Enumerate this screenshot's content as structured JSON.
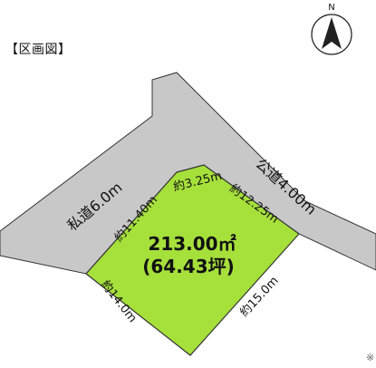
{
  "heading": "【区画図】",
  "compass": {
    "label": "N"
  },
  "roads": {
    "private_road_label": "私道6.0m",
    "public_road_label": "公道4.00m"
  },
  "lot": {
    "area_m2": "213.00㎡",
    "area_tsubo": "(64.43坪)",
    "fill_color": "#a6e03b",
    "outline_color": "#333333"
  },
  "road_color": "#c8c8c8",
  "dimensions": {
    "left_top": "約11.40m",
    "top_short": "約3.25m",
    "top_right": "約12.25m",
    "bottom_left": "約14.0m",
    "bottom_right": "約15.0m"
  },
  "footnote": "※"
}
